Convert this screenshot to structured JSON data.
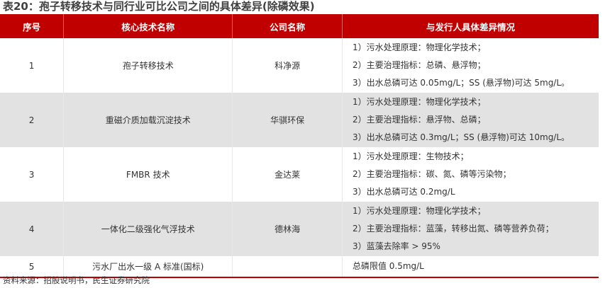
{
  "title": "表20：孢子转移技术与同行业可比公司之间的具体差异(除磷效果)",
  "headers": [
    "序号",
    "核心技术名称",
    "公司名称",
    "与发行人具体差异情况"
  ],
  "rows": [
    {
      "no": "1",
      "tech": "孢子转移技术",
      "company": "科净源",
      "diff": [
        "1）污水处理原理：物理化学技术；",
        "2）主要治理指标：总磷、悬浮物；",
        "3）出水总磷可达 0.05mg/L；SS (悬浮物)可达 5mg/L。"
      ]
    },
    {
      "no": "2",
      "tech": "重磁介质加载沉淀技术",
      "company": "华骐环保",
      "diff": [
        "1）污水处理原理：物理化学技术；",
        "2）主要治理指标：悬浮物、总磷；",
        "3）出水总磷可达 0.3mg/L；SS (悬浮物)可达 10mg/L。"
      ]
    },
    {
      "no": "3",
      "tech": "FMBR 技术",
      "company": "金达莱",
      "diff": [
        "1）污水处理原理：生物技术；",
        "2）主要治理指标：碳、氮、磷等污染物；",
        "3）出水总磷可达 0.2mg/L"
      ]
    },
    {
      "no": "4",
      "tech": "一体化二级强化气浮技术",
      "company": "德林海",
      "diff": [
        "1）污水处理原理：物理化学技术；",
        "2）主要治理指标：蓝藻，转移出氮、磷等营养负荷；",
        "3）蓝藻去除率 > 95%"
      ]
    },
    {
      "no": "5",
      "tech": "污水厂出水一级 A 标准(国标)",
      "company": "",
      "diff": [
        "总磷限值 0.5mg/L"
      ]
    }
  ],
  "source": "资料来源：招股说明书，民生证券研究院",
  "colors": {
    "header_bg": "#c00000",
    "stripe": "#e2e2e2"
  }
}
